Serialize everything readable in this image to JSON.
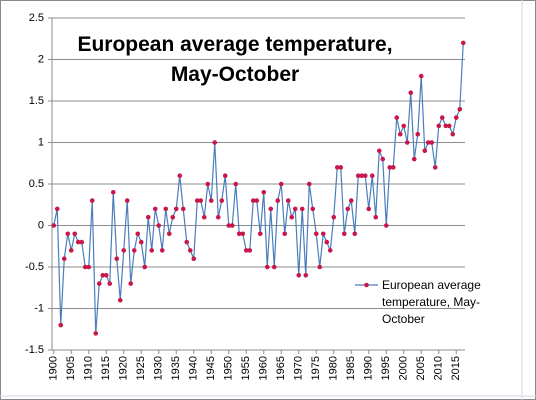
{
  "chart_data": {
    "type": "line",
    "title": "European average temperature, May-October",
    "x": [
      1900,
      1901,
      1902,
      1903,
      1904,
      1905,
      1906,
      1907,
      1908,
      1909,
      1910,
      1911,
      1912,
      1913,
      1914,
      1915,
      1916,
      1917,
      1918,
      1919,
      1920,
      1921,
      1922,
      1923,
      1924,
      1925,
      1926,
      1927,
      1928,
      1929,
      1930,
      1931,
      1932,
      1933,
      1934,
      1935,
      1936,
      1937,
      1938,
      1939,
      1940,
      1941,
      1942,
      1943,
      1944,
      1945,
      1946,
      1947,
      1948,
      1949,
      1950,
      1951,
      1952,
      1953,
      1954,
      1955,
      1956,
      1957,
      1958,
      1959,
      1960,
      1961,
      1962,
      1963,
      1964,
      1965,
      1966,
      1967,
      1968,
      1969,
      1970,
      1971,
      1972,
      1973,
      1974,
      1975,
      1976,
      1977,
      1978,
      1979,
      1980,
      1981,
      1982,
      1983,
      1984,
      1985,
      1986,
      1987,
      1988,
      1989,
      1990,
      1991,
      1992,
      1993,
      1994,
      1995,
      1996,
      1997,
      1998,
      1999,
      2000,
      2001,
      2002,
      2003,
      2004,
      2005,
      2006,
      2007,
      2008,
      2009,
      2010,
      2011,
      2012,
      2013,
      2014,
      2015,
      2016,
      2017
    ],
    "series": [
      {
        "name": "European average temperature, May-October",
        "color": "#4a7ebb",
        "marker_color": "#c8174a",
        "values": [
          0,
          0.2,
          -1.2,
          -0.4,
          -0.1,
          -0.3,
          -0.1,
          -0.2,
          -0.2,
          -0.5,
          -0.5,
          0.3,
          -1.3,
          -0.7,
          -0.6,
          -0.6,
          -0.7,
          0.4,
          -0.4,
          -0.9,
          -0.3,
          0.3,
          -0.7,
          -0.3,
          -0.1,
          -0.2,
          -0.5,
          0.1,
          -0.3,
          0.2,
          0,
          -0.3,
          0.2,
          -0.1,
          0.1,
          0.2,
          0.6,
          0.2,
          -0.2,
          -0.3,
          -0.4,
          0.3,
          0.3,
          0.1,
          0.5,
          0.3,
          1.0,
          0.1,
          0.3,
          0.6,
          0,
          0,
          0.5,
          -0.1,
          -0.1,
          -0.3,
          -0.3,
          0.3,
          0.3,
          -0.1,
          0.4,
          -0.5,
          0.2,
          -0.5,
          0.3,
          0.5,
          -0.1,
          0.3,
          0.1,
          0.2,
          -0.6,
          0.2,
          -0.6,
          0.5,
          0.2,
          -0.1,
          -0.5,
          -0.1,
          -0.2,
          -0.3,
          0.1,
          0.7,
          0.7,
          -0.1,
          0.2,
          0.3,
          -0.1,
          0.6,
          0.6,
          0.6,
          0.2,
          0.6,
          0.1,
          0.9,
          0.8,
          0,
          0.7,
          0.7,
          1.3,
          1.1,
          1.2,
          1.0,
          1.6,
          0.8,
          1.1,
          1.8,
          0.9,
          1.0,
          1.0,
          0.7,
          1.2,
          1.3,
          1.2,
          1.2,
          1.1,
          1.3,
          1.4,
          2.2
        ]
      }
    ],
    "xlim": [
      1899.5,
      2017.5
    ],
    "xticks": [
      1900,
      1905,
      1910,
      1915,
      1920,
      1925,
      1930,
      1935,
      1940,
      1945,
      1950,
      1955,
      1960,
      1965,
      1970,
      1975,
      1980,
      1985,
      1990,
      1995,
      2000,
      2005,
      2010,
      2015
    ],
    "ylim": [
      -1.5,
      2.5
    ],
    "yticks": [
      -1.5,
      -1,
      -0.5,
      0,
      0.5,
      1,
      1.5,
      2,
      2.5
    ],
    "grid": true
  }
}
